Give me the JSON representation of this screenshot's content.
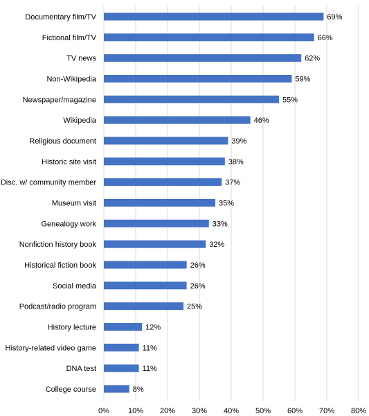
{
  "chart_data": {
    "type": "bar",
    "orientation": "horizontal",
    "title": "",
    "xlabel": "",
    "ylabel": "",
    "xlim": [
      0,
      80
    ],
    "grid": true,
    "bar_color": "#4472C4",
    "categories": [
      "Documentary film/TV",
      "Fictional film/TV",
      "TV news",
      "Non-Wikipedia",
      "Newspaper/magazine",
      "Wikipedia",
      "Religious document",
      "Historic site visit",
      "Disc. w/ community member",
      "Museum visit",
      "Genealogy work",
      "Nonfiction history book",
      "Historical fiction book",
      "Social media",
      "Podcast/radio program",
      "History lecture",
      "History-related video game",
      "DNA test",
      "College course"
    ],
    "values": [
      69,
      66,
      62,
      59,
      55,
      46,
      39,
      38,
      37,
      35,
      33,
      32,
      26,
      26,
      25,
      12,
      11,
      11,
      8
    ],
    "value_labels": [
      "69%",
      "66%",
      "62%",
      "59%",
      "55%",
      "46%",
      "39%",
      "38%",
      "37%",
      "35%",
      "33%",
      "32%",
      "26%",
      "26%",
      "25%",
      "12%",
      "11%",
      "11%",
      "8%"
    ],
    "x_ticks": [
      0,
      10,
      20,
      30,
      40,
      50,
      60,
      70,
      80
    ],
    "x_tick_labels": [
      "0%",
      "10%",
      "20%",
      "30%",
      "40%",
      "50%",
      "60%",
      "70%",
      "80%"
    ]
  }
}
